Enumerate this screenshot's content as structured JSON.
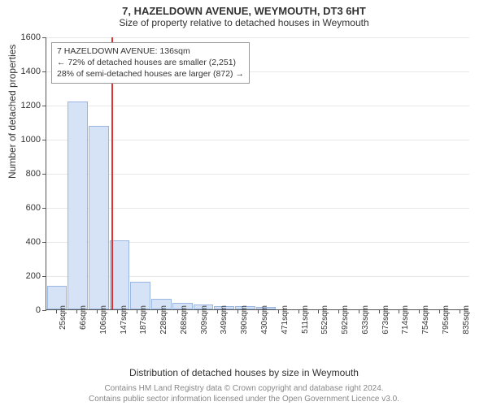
{
  "title": "7, HAZELDOWN AVENUE, WEYMOUTH, DT3 6HT",
  "subtitle": "Size of property relative to detached houses in Weymouth",
  "ylabel": "Number of detached properties",
  "xlabel": "Distribution of detached houses by size in Weymouth",
  "footer1": "Contains HM Land Registry data © Crown copyright and database right 2024.",
  "footer2": "Contains public sector information licensed under the Open Government Licence v3.0.",
  "chart": {
    "type": "histogram",
    "background_color": "#ffffff",
    "grid_color": "#e8e8e8",
    "axis_color": "#555555",
    "bar_fill": "#d6e2f5",
    "bar_border": "#9bb6e0",
    "marker_color": "#d33333",
    "ylim": [
      0,
      1600
    ],
    "ytick_step": 200,
    "yticks": [
      0,
      200,
      400,
      600,
      800,
      1000,
      1200,
      1400,
      1600
    ],
    "xticks": [
      "25sqm",
      "66sqm",
      "106sqm",
      "147sqm",
      "187sqm",
      "228sqm",
      "268sqm",
      "309sqm",
      "349sqm",
      "390sqm",
      "430sqm",
      "471sqm",
      "511sqm",
      "552sqm",
      "592sqm",
      "633sqm",
      "673sqm",
      "714sqm",
      "754sqm",
      "795sqm",
      "835sqm"
    ],
    "values": [
      140,
      1220,
      1075,
      405,
      160,
      60,
      40,
      30,
      20,
      18,
      14,
      0,
      0,
      0,
      0,
      0,
      0,
      0,
      0,
      0,
      0
    ],
    "marker_index": 2.73,
    "title_fontsize": 13,
    "label_fontsize": 12,
    "tick_fontsize": 11,
    "xtick_fontsize": 10
  },
  "info": {
    "line1": "7 HAZELDOWN AVENUE: 136sqm",
    "line2": "← 72% of detached houses are smaller (2,251)",
    "line3": "28% of semi-detached houses are larger (872) →"
  }
}
